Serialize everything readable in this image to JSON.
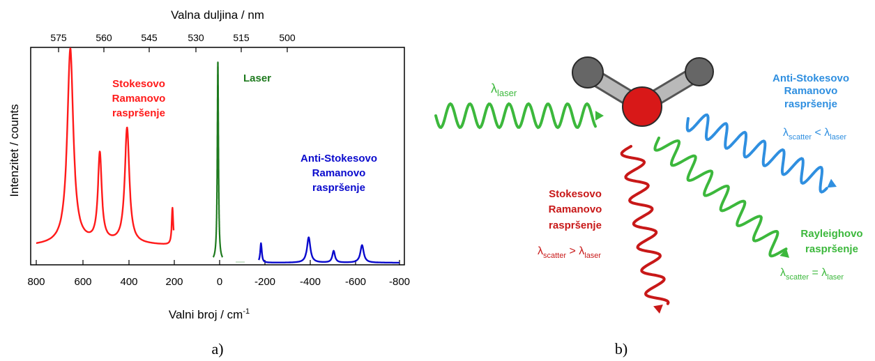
{
  "panel_a": {
    "top_axis_label": "Valna duljina / nm",
    "top_ticks": [
      "575",
      "560",
      "545",
      "530",
      "515",
      "500"
    ],
    "bottom_axis_label_main": "Valni broj / cm",
    "bottom_axis_label_sup": "-1",
    "bottom_ticks": [
      "800",
      "600",
      "400",
      "200",
      "0",
      "-200",
      "-400",
      "-600",
      "-800"
    ],
    "y_axis_label": "Intenzitet / counts",
    "stokes_label": [
      "Stokesovo",
      "Ramanovo",
      "raspršenje"
    ],
    "laser_label": "Laser",
    "anti_stokes_label": [
      "Anti-Stokesovo",
      "Ramanovo",
      "raspršenje"
    ],
    "caption": "a)"
  },
  "panel_b": {
    "laser_lambda": "λ",
    "laser_sub": "laser",
    "anti_stokes_label": [
      "Anti-Stokesovo",
      "Ramanovo",
      "raspršenje"
    ],
    "anti_stokes_formula": {
      "l1": "λ",
      "s1": "scatter",
      "op": " < ",
      "l2": "λ",
      "s2": "laser"
    },
    "stokes_label": [
      "Stokesovo",
      "Ramanovo",
      "raspršenje"
    ],
    "stokes_formula": {
      "l1": "λ",
      "s1": "scatter",
      "op": " > ",
      "l2": "λ",
      "s2": "laser"
    },
    "rayleigh_label": [
      "Rayleighovo",
      "raspršenje"
    ],
    "rayleigh_formula": {
      "l1": "λ",
      "s1": "scatter",
      "op": " = ",
      "l2": "λ",
      "s2": "laser"
    },
    "caption": "b)"
  },
  "colors": {
    "stokes": "#ff1a1a",
    "laser": "#1e7a1e",
    "anti_stokes": "#0a0acd",
    "b_green": "#3cb83c",
    "b_blue": "#2f8fe0",
    "b_red": "#c81818",
    "atom_gray": "#666666",
    "atom_red": "#d81818"
  },
  "chart_data": {
    "type": "line",
    "xlabel": "Valni broj / cm-1",
    "ylabel": "Intenzitet / counts",
    "x2label": "Valna duljina / nm",
    "xlim": [
      800,
      -800
    ],
    "series": [
      {
        "name": "Stokesovo Ramanovo raspršenje",
        "peaks": [
          {
            "x": 650,
            "height": 1.0,
            "width": 16
          },
          {
            "x": 520,
            "height": 0.45,
            "width": 10
          },
          {
            "x": 400,
            "height": 0.59,
            "width": 12
          },
          {
            "x": 200,
            "height": 0.19,
            "width": 4
          }
        ],
        "x_range": [
          800,
          195
        ]
      },
      {
        "name": "Laser",
        "peaks": [
          {
            "x": 0,
            "height": 1.02,
            "width": 3
          }
        ],
        "x_range": [
          20,
          -20
        ]
      },
      {
        "name": "Anti-Stokesovo Ramanovo raspršenje",
        "peaks": [
          {
            "x": -190,
            "height": 0.1,
            "width": 4
          },
          {
            "x": -400,
            "height": 0.13,
            "width": 9
          },
          {
            "x": -510,
            "height": 0.06,
            "width": 7
          },
          {
            "x": -635,
            "height": 0.09,
            "width": 9
          }
        ],
        "x_range": [
          -180,
          -800
        ]
      }
    ]
  }
}
